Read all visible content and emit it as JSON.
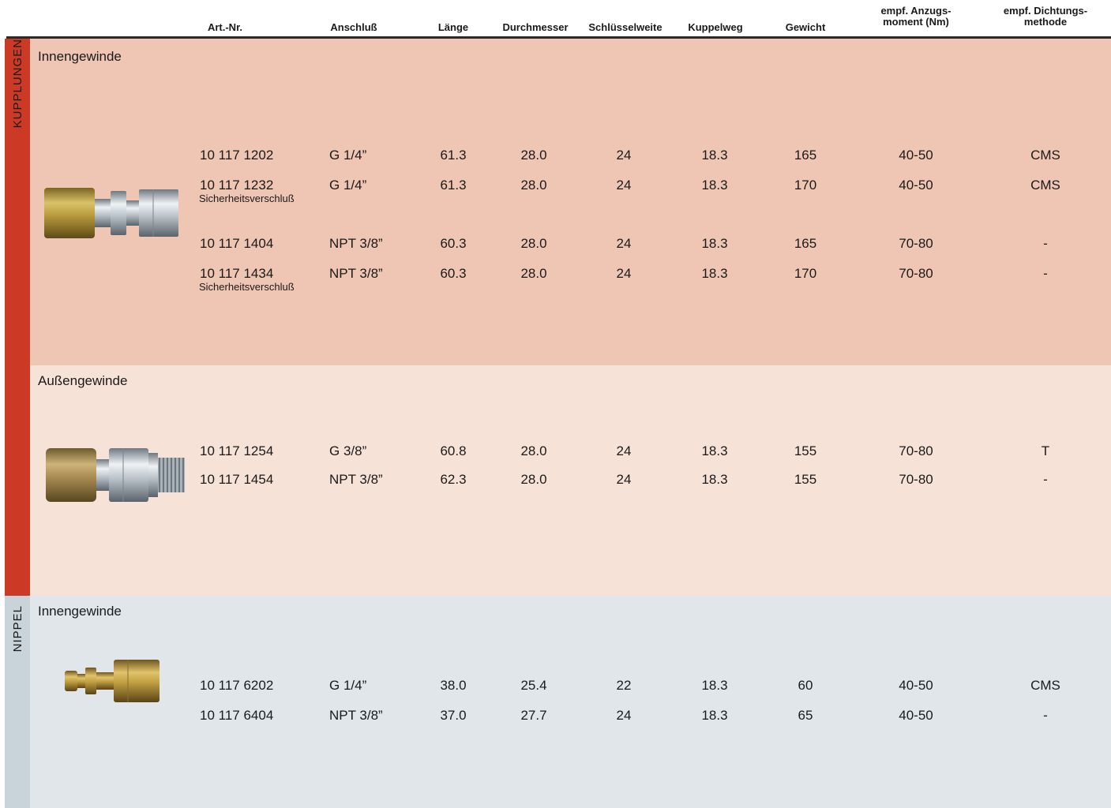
{
  "headers": {
    "art_nr": "Art.-Nr.",
    "anschluss": "Anschluß",
    "laenge": "Länge",
    "durchmesser": "Durchmesser",
    "schluesselweite": "Schlüsselweite",
    "kuppelweg": "Kuppelweg",
    "gewicht": "Gewicht",
    "anzugsmoment_1": "empf. Anzugs-",
    "anzugsmoment_2": "moment (Nm)",
    "dichtung_1": "empf. Dichtungs-",
    "dichtung_2": "methode"
  },
  "groups": {
    "kupplungen": "KUPPLUNGEN",
    "nippel": "NIPPEL"
  },
  "colors": {
    "kupplungen_bar": "#cc3a26",
    "nippel_bar": "#c8d3da",
    "section_1_bg": "#efc5b3",
    "section_2_bg": "#f7e2d8",
    "section_3_bg": "#e0e6ea"
  },
  "sections": [
    {
      "title": "Innengewinde",
      "product_icon": "female-coupling-icon",
      "rows": [
        {
          "art": "10 117 1202",
          "note": "",
          "anschluss": "G 1/4”",
          "laenge": "61.3",
          "durchmesser": "28.0",
          "sw": "24",
          "kuppelweg": "18.3",
          "gewicht": "165",
          "moment": "40-50",
          "dichtung": "CMS"
        },
        {
          "art": "10 117 1232",
          "note": "Sicherheitsverschluß",
          "anschluss": "G 1/4”",
          "laenge": "61.3",
          "durchmesser": "28.0",
          "sw": "24",
          "kuppelweg": "18.3",
          "gewicht": "170",
          "moment": "40-50",
          "dichtung": "CMS"
        },
        {
          "art": "10 117 1404",
          "note": "",
          "anschluss": "NPT 3/8”",
          "laenge": "60.3",
          "durchmesser": "28.0",
          "sw": "24",
          "kuppelweg": "18.3",
          "gewicht": "165",
          "moment": "70-80",
          "dichtung": "-"
        },
        {
          "art": "10 117 1434",
          "note": "Sicherheitsverschluß",
          "anschluss": "NPT 3/8”",
          "laenge": "60.3",
          "durchmesser": "28.0",
          "sw": "24",
          "kuppelweg": "18.3",
          "gewicht": "170",
          "moment": "70-80",
          "dichtung": "-"
        }
      ]
    },
    {
      "title": "Außengewinde",
      "product_icon": "male-thread-coupling-icon",
      "rows": [
        {
          "art": "10 117 1254",
          "note": "",
          "anschluss": "G 3/8”",
          "laenge": "60.8",
          "durchmesser": "28.0",
          "sw": "24",
          "kuppelweg": "18.3",
          "gewicht": "155",
          "moment": "70-80",
          "dichtung": "T"
        },
        {
          "art": "10 117 1454",
          "note": "",
          "anschluss": "NPT 3/8”",
          "laenge": "62.3",
          "durchmesser": "28.0",
          "sw": "24",
          "kuppelweg": "18.3",
          "gewicht": "155",
          "moment": "70-80",
          "dichtung": "-"
        }
      ]
    },
    {
      "title": "Innengewinde",
      "product_icon": "nipple-icon",
      "rows": [
        {
          "art": "10 117 6202",
          "note": "",
          "anschluss": "G 1/4”",
          "laenge": "38.0",
          "durchmesser": "25.4",
          "sw": "22",
          "kuppelweg": "18.3",
          "gewicht": "60",
          "moment": "40-50",
          "dichtung": "CMS"
        },
        {
          "art": "10 117 6404",
          "note": "",
          "anschluss": "NPT 3/8”",
          "laenge": "37.0",
          "durchmesser": "27.7",
          "sw": "24",
          "kuppelweg": "18.3",
          "gewicht": "65",
          "moment": "40-50",
          "dichtung": "-"
        }
      ]
    }
  ]
}
